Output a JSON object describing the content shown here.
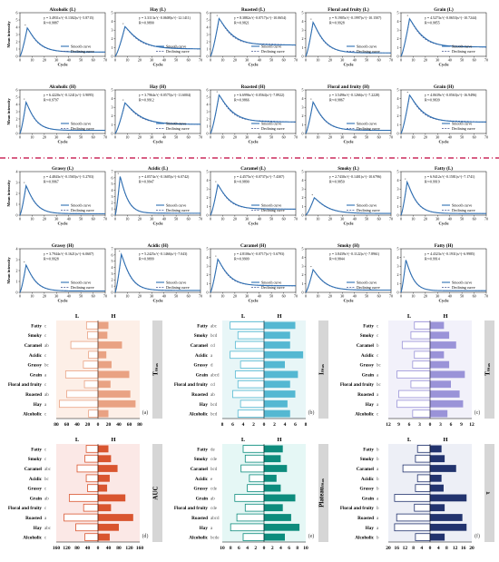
{
  "figure": {
    "separator_color": "#c0003c",
    "curve_color": "#2f6fb2",
    "fit_color": "#44568f"
  },
  "chart_data": [
    {
      "type": "line",
      "panel": "A1",
      "title": "Alcoholic (L)",
      "formula": "y = 3.4931x^(−0.1302)x^(−5.8715)",
      "r2": "R²=0.9887",
      "legend": [
        "Smooth curve",
        "Declining curve"
      ],
      "xlabel": "Cycle",
      "ylabel": "Mean intensity",
      "xlim": [
        0,
        70
      ],
      "ylim": [
        0,
        6
      ],
      "xticks": [
        0,
        10,
        20,
        30,
        40,
        50,
        60,
        70
      ],
      "yticks": [
        0,
        1,
        2,
        3,
        4,
        5,
        6
      ],
      "peak_x": 6,
      "peak_y": 3.9,
      "tail": 0.15
    },
    {
      "type": "line",
      "panel": "A2",
      "title": "Hay (L)",
      "formula": "y = 3.3113x^(−0.0608)x^(−12.1411)",
      "r2": "R²=0.9890",
      "legend": [
        "Smooth curve",
        "Declining curve"
      ],
      "xlabel": "Cycle",
      "ylabel": "",
      "xlim": [
        0,
        70
      ],
      "ylim": [
        0,
        5
      ],
      "xticks": [
        0,
        10,
        20,
        30,
        40,
        50,
        60,
        70
      ],
      "yticks": [
        0,
        1,
        2,
        3,
        4,
        5
      ],
      "peak_x": 8,
      "peak_y": 3.4,
      "tail": 0.25
    },
    {
      "type": "line",
      "panel": "A3",
      "title": "Roasted (L)",
      "formula": "y = 8.3882x^(−0.0717)x^(−10.0654)",
      "r2": "R²=0.9821",
      "legend": [
        "Smooth curve",
        "Declining curve"
      ],
      "xlabel": "Cycle",
      "ylabel": "",
      "xlim": [
        0,
        70
      ],
      "ylim": [
        0,
        6
      ],
      "xticks": [
        0,
        10,
        20,
        30,
        40,
        50,
        60,
        70
      ],
      "yticks": [
        0,
        1,
        2,
        3,
        4,
        5,
        6
      ],
      "peak_x": 7,
      "peak_y": 5.2,
      "tail": 0.3
    },
    {
      "type": "line",
      "panel": "A4",
      "title": "Floral and fruity (L)",
      "formula": "y = 9.1905x^(−0.1997)x^(−10.1507)",
      "r2": "R²=0.9928",
      "legend": [
        "Smooth curve",
        "Declining curve"
      ],
      "xlabel": "Cycle",
      "ylabel": "",
      "xlim": [
        0,
        70
      ],
      "ylim": [
        0,
        5
      ],
      "xticks": [
        0,
        10,
        20,
        30,
        40,
        50,
        60,
        70
      ],
      "yticks": [
        0,
        1,
        2,
        3,
        4,
        5
      ],
      "peak_x": 6,
      "peak_y": 3.9,
      "tail": 0.1
    },
    {
      "type": "line",
      "panel": "A5",
      "title": "Grain (L)",
      "formula": "y = 4.5273x^(−0.0653)x^(−10.7244)",
      "r2": "R²=0.9855",
      "legend": [
        "Smooth curve",
        "Declining curve"
      ],
      "xlabel": "Cycle",
      "ylabel": "",
      "xlim": [
        0,
        70
      ],
      "ylim": [
        0,
        5
      ],
      "xticks": [
        0,
        10,
        20,
        30,
        40,
        50,
        60,
        70
      ],
      "yticks": [
        0,
        1,
        2,
        3,
        4,
        5
      ],
      "peak_x": 7,
      "peak_y": 4.3,
      "tail": 0.25
    },
    {
      "type": "line",
      "panel": "B1",
      "title": "Alcoholic (H)",
      "formula": "y = 6.4220x^(−0.1241)x^(−3.9095)",
      "r2": "R²=0.9797",
      "legend": [
        "Smooth curve",
        "Declining curve"
      ],
      "xlabel": "Cycle",
      "ylabel": "Mean intensity",
      "xlim": [
        0,
        70
      ],
      "ylim": [
        0,
        6
      ],
      "xticks": [
        0,
        10,
        20,
        30,
        40,
        50,
        60,
        70
      ],
      "yticks": [
        0,
        1,
        2,
        3,
        4,
        5,
        6
      ],
      "peak_x": 5,
      "peak_y": 4.3,
      "tail": 0.1
    },
    {
      "type": "line",
      "panel": "B2",
      "title": "Hay (H)",
      "formula": "y = 3.7964x^(−0.0575)x^(−11.6004)",
      "r2": "R²=0.9912",
      "legend": [
        "Smooth curve",
        "Declining curve"
      ],
      "xlabel": "Cycle",
      "ylabel": "",
      "xlim": [
        0,
        70
      ],
      "ylim": [
        0,
        5
      ],
      "xticks": [
        0,
        10,
        20,
        30,
        40,
        50,
        60,
        70
      ],
      "yticks": [
        0,
        1,
        2,
        3,
        4,
        5
      ],
      "peak_x": 8,
      "peak_y": 3.5,
      "tail": 0.3
    },
    {
      "type": "line",
      "panel": "B3",
      "title": "Roasted (H)",
      "formula": "y = 6.6996x^(−0.0564)x^(−7.8922)",
      "r2": "R²=0.9866",
      "legend": [
        "Smooth curve",
        "Declining curve"
      ],
      "xlabel": "Cycle",
      "ylabel": "",
      "xlim": [
        0,
        70
      ],
      "ylim": [
        0,
        6
      ],
      "xticks": [
        0,
        10,
        20,
        30,
        40,
        50,
        60,
        70
      ],
      "yticks": [
        0,
        1,
        2,
        3,
        4,
        5,
        6
      ],
      "peak_x": 7,
      "peak_y": 5.3,
      "tail": 0.3
    },
    {
      "type": "line",
      "panel": "B4",
      "title": "Floral and fruity (H)",
      "formula": "y = 3.5496x^(−0.1266)x^(−7.2228)",
      "r2": "R²=0.9867",
      "legend": [
        "Smooth curve",
        "Declining curve"
      ],
      "xlabel": "Cycle",
      "ylabel": "",
      "xlim": [
        0,
        70
      ],
      "ylim": [
        0,
        5
      ],
      "xticks": [
        0,
        10,
        20,
        30,
        40,
        50,
        60,
        70
      ],
      "yticks": [
        0,
        1,
        2,
        3,
        4,
        5
      ],
      "peak_x": 6,
      "peak_y": 3.6,
      "tail": 0.1
    },
    {
      "type": "line",
      "panel": "B5",
      "title": "Grain (H)",
      "formula": "y = 4.0639x^(−0.0563)x^(−16.9496)",
      "r2": "R²=0.9839",
      "legend": [
        "Smooth curve",
        "Declining curve"
      ],
      "xlabel": "Cycle",
      "ylabel": "",
      "xlim": [
        0,
        70
      ],
      "ylim": [
        0,
        5
      ],
      "xticks": [
        0,
        10,
        20,
        30,
        40,
        50,
        60,
        70
      ],
      "yticks": [
        0,
        1,
        2,
        3,
        4,
        5
      ],
      "peak_x": 7,
      "peak_y": 4.4,
      "tail": 0.3
    },
    {
      "type": "line",
      "panel": "C1",
      "title": "Grassy (L)",
      "formula": "y = 4.4843x^(−0.1565)x^(−5.2703)",
      "r2": "R²=0.9967",
      "legend": [
        "Smooth curve",
        "Declining curve"
      ],
      "xlabel": "Cycle",
      "ylabel": "Mean intensity",
      "xlim": [
        0,
        70
      ],
      "ylim": [
        0,
        4
      ],
      "xticks": [
        0,
        10,
        20,
        30,
        40,
        50,
        60,
        70
      ],
      "yticks": [
        0,
        1,
        2,
        3,
        4
      ],
      "peak_x": 5,
      "peak_y": 2.7,
      "tail": 0.05
    },
    {
      "type": "line",
      "panel": "C2",
      "title": "Acidic (L)",
      "formula": "y = 4.0574x^(−0.1605)x^(−6.0742)",
      "r2": "R²=0.9947",
      "legend": [
        "Smooth curve",
        "Declining curve"
      ],
      "xlabel": "Cycle",
      "ylabel": "",
      "xlim": [
        0,
        70
      ],
      "ylim": [
        0,
        7
      ],
      "xticks": [
        0,
        10,
        20,
        30,
        40,
        50,
        60,
        70
      ],
      "yticks": [
        0,
        1,
        2,
        3,
        4,
        5,
        6,
        7
      ],
      "peak_x": 4,
      "peak_y": 6.2,
      "tail": 0.05
    },
    {
      "type": "line",
      "panel": "C3",
      "title": "Caramel (L)",
      "formula": "y = 4.4575x^(−0.0737)x^(−7.4307)",
      "r2": "R²=0.9890",
      "legend": [
        "Smooth curve",
        "Declining curve"
      ],
      "xlabel": "Cycle",
      "ylabel": "",
      "xlim": [
        0,
        70
      ],
      "ylim": [
        0,
        5
      ],
      "xticks": [
        0,
        10,
        20,
        30,
        40,
        50,
        60,
        70
      ],
      "yticks": [
        0,
        1,
        2,
        3,
        4,
        5
      ],
      "peak_x": 6,
      "peak_y": 3.5,
      "tail": 0.2
    },
    {
      "type": "line",
      "panel": "C4",
      "title": "Smoky (L)",
      "formula": "y = 2.7430x^(−0.1401)x^(−10.6796)",
      "r2": "R²=0.9850",
      "legend": [
        "Smooth curve",
        "Declining curve"
      ],
      "xlabel": "Cycle",
      "ylabel": "",
      "xlim": [
        0,
        70
      ],
      "ylim": [
        0,
        5
      ],
      "xticks": [
        0,
        10,
        20,
        30,
        40,
        50,
        60,
        70
      ],
      "yticks": [
        0,
        1,
        2,
        3,
        4,
        5
      ],
      "peak_x": 7,
      "peak_y": 2.0,
      "tail": 0.1
    },
    {
      "type": "line",
      "panel": "C5",
      "title": "Fatty (L)",
      "formula": "y = 6.9412x^(−0.1581)x^(−7.1741)",
      "r2": "R²=0.9919",
      "legend": [
        "Smooth curve",
        "Declining curve"
      ],
      "xlabel": "Cycle",
      "ylabel": "",
      "xlim": [
        0,
        70
      ],
      "ylim": [
        0,
        5
      ],
      "xticks": [
        0,
        10,
        20,
        30,
        40,
        50,
        60,
        70
      ],
      "yticks": [
        0,
        1,
        2,
        3,
        4,
        5
      ],
      "peak_x": 5,
      "peak_y": 3.8,
      "tail": 0.05
    },
    {
      "type": "line",
      "panel": "D1",
      "title": "Grassy (H)",
      "formula": "y = 3.7944x^(−0.1621)x^(−6.0607)",
      "r2": "R²=0.9928",
      "legend": [
        "Smooth curve",
        "Declining curve"
      ],
      "xlabel": "Cycle",
      "ylabel": "Mean intensity",
      "xlim": [
        0,
        70
      ],
      "ylim": [
        0,
        4
      ],
      "xticks": [
        0,
        10,
        20,
        30,
        40,
        50,
        60,
        70
      ],
      "yticks": [
        0,
        1,
        2,
        3,
        4
      ],
      "peak_x": 5,
      "peak_y": 2.5,
      "tail": 0.05
    },
    {
      "type": "line",
      "panel": "D2",
      "title": "Acidic (H)",
      "formula": "y = 5.2425x^(−0.1466)x^(−7.043)",
      "r2": "R²=0.9899",
      "legend": [
        "Smooth curve",
        "Declining curve"
      ],
      "xlabel": "Cycle",
      "ylabel": "",
      "xlim": [
        0,
        70
      ],
      "ylim": [
        0,
        7
      ],
      "xticks": [
        0,
        10,
        20,
        30,
        40,
        50,
        60,
        70
      ],
      "yticks": [
        0,
        1,
        2,
        3,
        4,
        5,
        6,
        7
      ],
      "peak_x": 5,
      "peak_y": 6.1,
      "tail": 0.05
    },
    {
      "type": "line",
      "panel": "D3",
      "title": "Caramel (H)",
      "formula": "y = 4.8106x^(−0.0717)x^(−5.6793)",
      "r2": "R²=0.9909",
      "legend": [
        "Smooth curve",
        "Declining curve"
      ],
      "xlabel": "Cycle",
      "ylabel": "",
      "xlim": [
        0,
        70
      ],
      "ylim": [
        0,
        5
      ],
      "xticks": [
        0,
        10,
        20,
        30,
        40,
        50,
        60,
        70
      ],
      "yticks": [
        0,
        1,
        2,
        3,
        4,
        5
      ],
      "peak_x": 6,
      "peak_y": 3.8,
      "tail": 0.2
    },
    {
      "type": "line",
      "panel": "D4",
      "title": "Smoky (H)",
      "formula": "y = 3.8439x^(−0.1122)x^(−7.8961)",
      "r2": "R²=0.9844",
      "legend": [
        "Smooth curve",
        "Declining curve"
      ],
      "xlabel": "Cycle",
      "ylabel": "",
      "xlim": [
        0,
        70
      ],
      "ylim": [
        0,
        5
      ],
      "xticks": [
        0,
        10,
        20,
        30,
        40,
        50,
        60,
        70
      ],
      "yticks": [
        0,
        1,
        2,
        3,
        4,
        5
      ],
      "peak_x": 6,
      "peak_y": 2.6,
      "tail": 0.1
    },
    {
      "type": "line",
      "panel": "D5",
      "title": "Fatty (H)",
      "formula": "y = 4.4323x^(−0.1931)x^(−6.9985)",
      "r2": "R²=0.9914",
      "legend": [
        "Smooth curve",
        "Declining curve"
      ],
      "xlabel": "Cycle",
      "ylabel": "",
      "xlim": [
        0,
        70
      ],
      "ylim": [
        0,
        5
      ],
      "xticks": [
        0,
        10,
        20,
        30,
        40,
        50,
        60,
        70
      ],
      "yticks": [
        0,
        1,
        2,
        3,
        4,
        5
      ],
      "peak_x": 4,
      "peak_y": 3.7,
      "tail": 0.05
    },
    {
      "type": "bar",
      "panel": "a",
      "label": "(a)",
      "metric": "Tₘₐₓ",
      "L_header": "L",
      "H_header": "H",
      "categories": [
        "Fatty",
        "Smoky",
        "Caramel",
        "Acidic",
        "Grassy",
        "Grain",
        "Floral and fruity",
        "Roasted",
        "Hay",
        "Alcoholic"
      ],
      "letters": [
        "c",
        "c",
        "ab",
        "c",
        "bc",
        "a",
        "c",
        "ab",
        "a",
        "c"
      ],
      "L_values": [
        22,
        20,
        52,
        18,
        28,
        62,
        26,
        60,
        74,
        18
      ],
      "H_values": [
        20,
        18,
        46,
        16,
        26,
        60,
        24,
        62,
        72,
        20
      ],
      "xticks_left": [
        80,
        60,
        40,
        20
      ],
      "xticks_right": [
        0,
        20,
        40,
        60,
        80
      ],
      "xmax": 80,
      "fill": "#e9a283",
      "bg": "#fbe1d3"
    },
    {
      "type": "bar",
      "panel": "b",
      "label": "(b)",
      "metric": "Iₘₐₓ",
      "L_header": "L",
      "H_header": "H",
      "categories": [
        "Fatty",
        "Smoky",
        "Caramel",
        "Acidic",
        "Grassy",
        "Grain",
        "Floral and fruity",
        "Roasted",
        "Hay",
        "Alcoholic"
      ],
      "letters": [
        "abc",
        "bcd",
        "cd",
        "a",
        "d",
        "abcd",
        "cd",
        "ab",
        "bcd",
        "bcd"
      ],
      "L_values": [
        6.5,
        5.0,
        5.5,
        6.5,
        4.5,
        5.5,
        5.0,
        6.0,
        4.5,
        5.0
      ],
      "H_values": [
        6.0,
        5.0,
        5.0,
        7.5,
        4.0,
        6.5,
        5.0,
        6.0,
        4.5,
        5.0
      ],
      "xticks_left": [
        8,
        6,
        4,
        2
      ],
      "xticks_right": [
        0,
        2,
        4,
        6,
        8
      ],
      "xmax": 8,
      "fill": "#54b8d2",
      "bg": "#d5eef0"
    },
    {
      "type": "bar",
      "panel": "c",
      "label": "(c)",
      "metric": "Tₘₐₓ",
      "L_header": "L",
      "H_header": "H",
      "categories": [
        "Fatty",
        "Smoky",
        "Caramel",
        "Acidic",
        "Grassy",
        "Grain",
        "Floral and fruity",
        "Roasted",
        "Hay",
        "Alcoholic"
      ],
      "letters": [
        "c",
        "c",
        "b",
        "c",
        "bc",
        "a",
        "bc",
        "a",
        "a",
        "c"
      ],
      "L_values": [
        4.5,
        5.5,
        8.0,
        4.5,
        5.0,
        9.5,
        5.5,
        9.0,
        9.5,
        5.0
      ],
      "H_values": [
        4.0,
        5.5,
        7.5,
        4.0,
        5.5,
        10.0,
        6.0,
        8.5,
        9.5,
        5.0
      ],
      "xticks_left": [
        12,
        9,
        6,
        3
      ],
      "xticks_right": [
        0,
        3,
        6,
        9,
        12
      ],
      "xmax": 12,
      "fill": "#9a93d8",
      "bg": "#e8e6f6"
    },
    {
      "type": "bar",
      "panel": "d",
      "label": "(d)",
      "metric": "AUC",
      "L_header": "L",
      "H_header": "H",
      "categories": [
        "Fatty",
        "Smoky",
        "Caramel",
        "Acidic",
        "Grassy",
        "Grain",
        "Floral and fruity",
        "Roasted",
        "Hay",
        "Alcoholic"
      ],
      "letters": [
        "c",
        "c",
        "abc",
        "bc",
        "c",
        "ab",
        "c",
        "a",
        "abc",
        "c"
      ],
      "L_values": [
        45,
        50,
        80,
        45,
        40,
        110,
        55,
        130,
        85,
        50
      ],
      "H_values": [
        40,
        50,
        75,
        45,
        35,
        105,
        50,
        135,
        80,
        45
      ],
      "xticks_left": [
        160,
        120,
        80,
        40
      ],
      "xticks_right": [
        0,
        40,
        80,
        120,
        160
      ],
      "xmax": 160,
      "fill": "#d9552f",
      "bg": "#f8d6d1"
    },
    {
      "type": "bar",
      "panel": "e",
      "label": "(e)",
      "metric": "Plateauₘₐₓ",
      "L_header": "L",
      "H_header": "H",
      "categories": [
        "Fatty",
        "Smoky",
        "Caramel",
        "Acidic",
        "Grassy",
        "Grain",
        "Floral and fruity",
        "Roasted",
        "Hay",
        "Alcoholic"
      ],
      "letters": [
        "de",
        "cde",
        "bcd",
        "e",
        "cde",
        "ab",
        "cde",
        "abcd",
        "a",
        "bcde"
      ],
      "L_values": [
        5.0,
        4.5,
        5.5,
        3.5,
        4.0,
        7.0,
        4.5,
        6.5,
        8.0,
        5.0
      ],
      "H_values": [
        4.5,
        4.0,
        5.5,
        3.0,
        4.0,
        7.5,
        4.5,
        6.5,
        8.5,
        5.0
      ],
      "xticks_left": [
        10,
        8,
        6,
        4,
        2
      ],
      "xticks_right": [
        0,
        2,
        4,
        6,
        8,
        10
      ],
      "xmax": 10,
      "fill": "#0d8c7d",
      "bg": "#d0f0ec"
    },
    {
      "type": "bar",
      "panel": "f",
      "label": "(f)",
      "metric": "τ",
      "L_header": "L",
      "H_header": "H",
      "categories": [
        "Fatty",
        "Smoky",
        "Caramel",
        "Acidic",
        "Grassy",
        "Grain",
        "Floral and fruity",
        "Roasted",
        "Hay",
        "Alcoholic"
      ],
      "letters": [
        "b",
        "b",
        "a",
        "b",
        "b",
        "a",
        "b",
        "a",
        "a",
        "b"
      ],
      "L_values": [
        6.0,
        7.0,
        13.0,
        6.0,
        7.0,
        17.0,
        7.5,
        16.0,
        17.0,
        7.0
      ],
      "H_values": [
        5.5,
        7.0,
        12.5,
        5.5,
        6.5,
        17.5,
        7.0,
        15.5,
        17.5,
        7.0
      ],
      "xticks_left": [
        20,
        16,
        12,
        8,
        4
      ],
      "xticks_right": [
        0,
        4,
        8,
        12,
        16,
        20
      ],
      "xmax": 20,
      "fill": "#22336e",
      "bg": "#dfe2ef"
    }
  ]
}
